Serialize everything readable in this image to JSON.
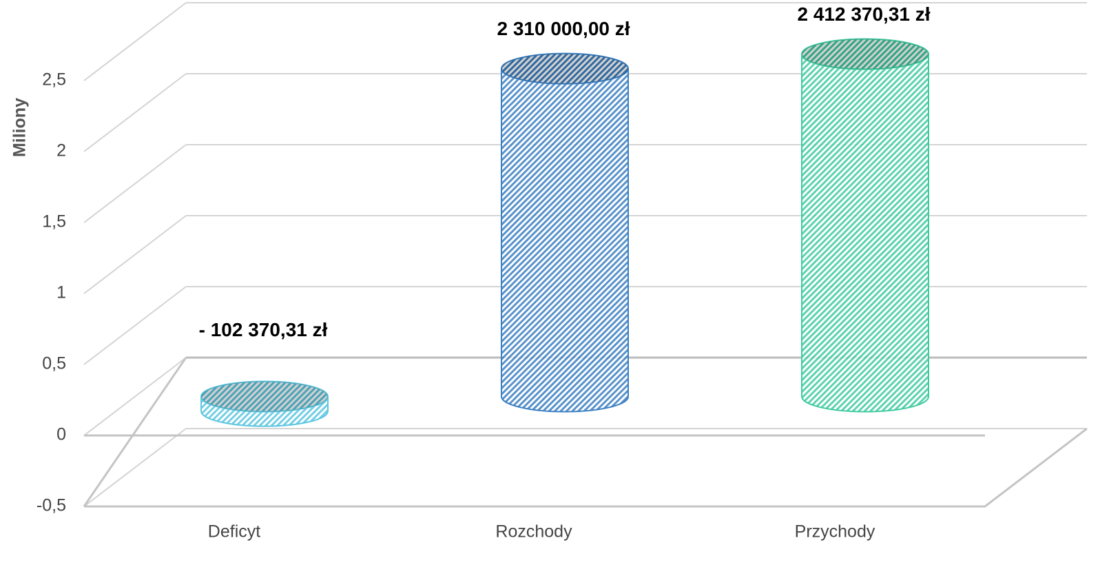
{
  "chart_data": {
    "type": "bar3d",
    "ylabel": "Miliony",
    "categories": [
      "Deficyt",
      "Rozchody",
      "Przychody"
    ],
    "values": [
      -0.10237031,
      2.31,
      2.41237031
    ],
    "value_labels": [
      "- 102 370,31 zł",
      "2 310 000,00 zł",
      "2 412 370,31 zł"
    ],
    "colors": [
      "#5cc6e0",
      "#3b7fc2",
      "#3fcaa0"
    ],
    "ylim": [
      -0.5,
      3
    ],
    "yticks": [
      {
        "value": -0.5,
        "label": "-0,5"
      },
      0,
      {
        "value": 0.5,
        "label": "0,5"
      },
      1,
      {
        "value": 1.5,
        "label": "1,5"
      },
      2,
      {
        "value": 2.5,
        "label": "2,5"
      }
    ],
    "grid": true
  }
}
